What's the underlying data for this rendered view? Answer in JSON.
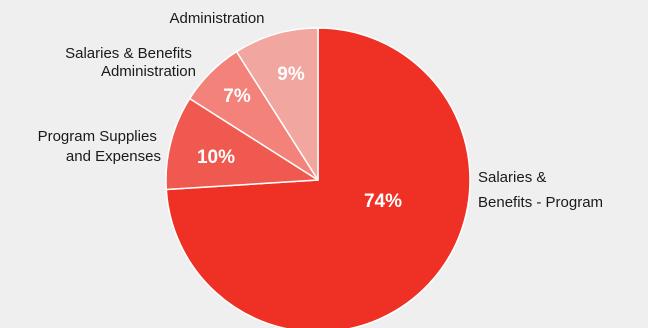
{
  "chart_data": {
    "type": "pie",
    "title": "",
    "slices": [
      {
        "label": "Salaries & Benefits - Program",
        "value": 74,
        "pct_label": "74%",
        "color": "#ee3124"
      },
      {
        "label": "Program Supplies and Expenses",
        "value": 10,
        "pct_label": "10%",
        "color": "#f0594f"
      },
      {
        "label": "Salaries & Benefits Administration",
        "value": 7,
        "pct_label": "7%",
        "color": "#f2827a"
      },
      {
        "label": "Administration",
        "value": 9,
        "pct_label": "9%",
        "color": "#f1a6a0"
      }
    ],
    "category_labels": {
      "program_salaries": [
        "Salaries &",
        "Benefits - Program"
      ],
      "program_supplies": [
        "Program Supplies",
        "and Expenses"
      ],
      "admin_salaries": [
        "Salaries & Benefits",
        "Administration"
      ],
      "administration": [
        "Administration"
      ]
    },
    "legend": "none",
    "background": "#f0efef",
    "slice_border_color": "#ffffff"
  }
}
